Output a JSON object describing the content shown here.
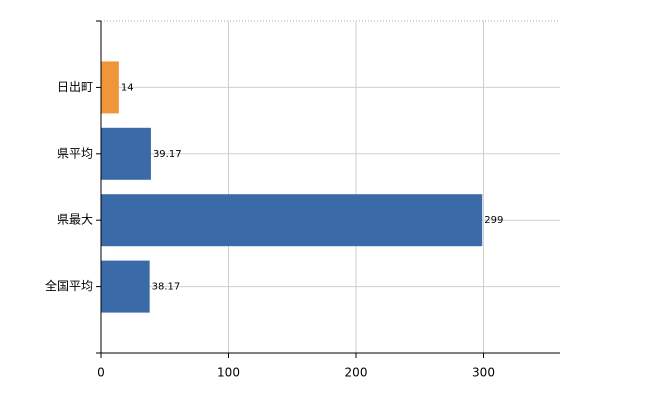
{
  "chart_data": {
    "type": "bar",
    "orientation": "horizontal",
    "categories": [
      "日出町",
      "県平均",
      "県最大",
      "全国平均"
    ],
    "values": [
      14,
      39.17,
      299,
      38.17
    ],
    "colors": [
      "#f0963a",
      "#3a6aa8",
      "#3a6aa8",
      "#3a6aa8"
    ],
    "xlim": [
      0,
      360
    ],
    "xticks": [
      0,
      100,
      200,
      300
    ],
    "grid": true
  }
}
